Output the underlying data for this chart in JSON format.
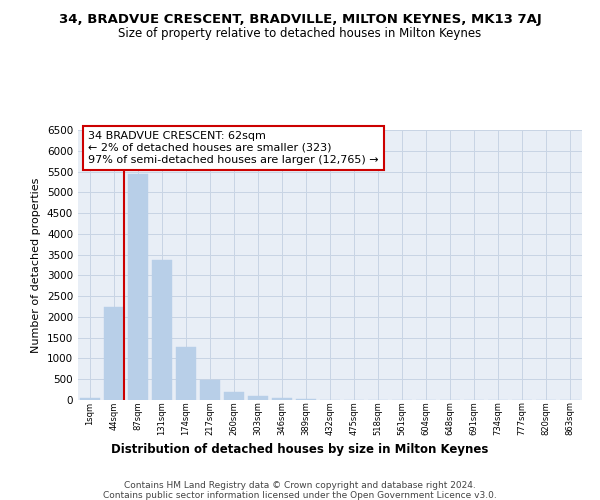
{
  "title1": "34, BRADVUE CRESCENT, BRADVILLE, MILTON KEYNES, MK13 7AJ",
  "title2": "Size of property relative to detached houses in Milton Keynes",
  "xlabel": "Distribution of detached houses by size in Milton Keynes",
  "ylabel": "Number of detached properties",
  "categories": [
    "1sqm",
    "44sqm",
    "87sqm",
    "131sqm",
    "174sqm",
    "217sqm",
    "260sqm",
    "303sqm",
    "346sqm",
    "389sqm",
    "432sqm",
    "475sqm",
    "518sqm",
    "561sqm",
    "604sqm",
    "648sqm",
    "691sqm",
    "734sqm",
    "777sqm",
    "820sqm",
    "863sqm"
  ],
  "values": [
    55,
    2250,
    5450,
    3380,
    1280,
    470,
    195,
    100,
    50,
    20,
    10,
    5,
    2,
    1,
    0,
    0,
    0,
    0,
    0,
    0,
    0
  ],
  "bar_color": "#b8cfe8",
  "bar_edgecolor": "#b8cfe8",
  "grid_color": "#c8d4e4",
  "background_color": "#e8eef6",
  "vline_x": 1.42,
  "vline_color": "#cc0000",
  "annotation_text": "34 BRADVUE CRESCENT: 62sqm\n← 2% of detached houses are smaller (323)\n97% of semi-detached houses are larger (12,765) →",
  "annotation_box_color": "#cc0000",
  "ylim": [
    0,
    6500
  ],
  "yticks": [
    0,
    500,
    1000,
    1500,
    2000,
    2500,
    3000,
    3500,
    4000,
    4500,
    5000,
    5500,
    6000,
    6500
  ],
  "footer1": "Contains HM Land Registry data © Crown copyright and database right 2024.",
  "footer2": "Contains public sector information licensed under the Open Government Licence v3.0."
}
